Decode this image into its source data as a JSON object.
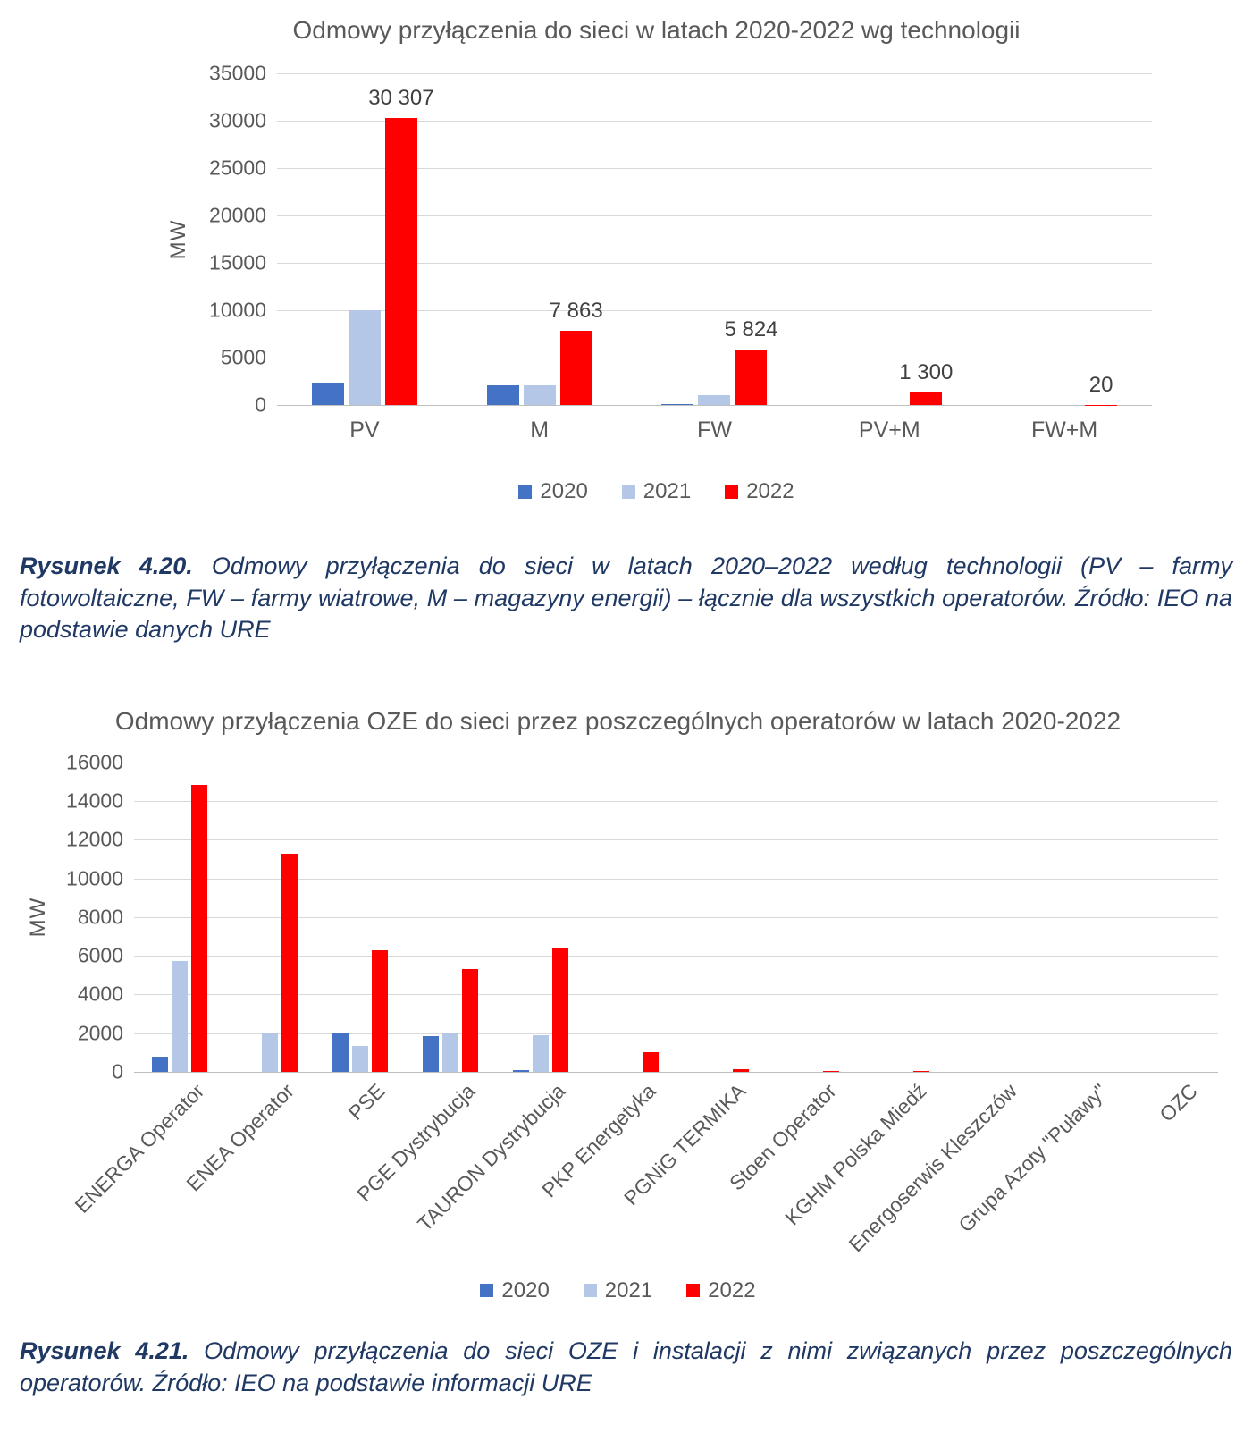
{
  "colors": {
    "series": [
      "#4472C4",
      "#B4C7E7",
      "#FF0000"
    ],
    "gridline": "#D9D9D9",
    "axis_text": "#595959",
    "data_label_text": "#404040",
    "caption_text": "#1F3864"
  },
  "chart_data": [
    {
      "type": "bar",
      "title": "Odmowy przyłączenia do sieci w latach 2020-2022 wg technologii",
      "ylabel": "MW",
      "ylim": [
        0,
        35000
      ],
      "ytick_step": 5000,
      "grid": true,
      "legend_position": "bottom",
      "categories": [
        "PV",
        "M",
        "FW",
        "PV+M",
        "FW+M"
      ],
      "series": [
        {
          "name": "2020",
          "values": [
            2400,
            2100,
            100,
            0,
            0
          ]
        },
        {
          "name": "2021",
          "values": [
            10000,
            2100,
            1000,
            0,
            0
          ]
        },
        {
          "name": "2022",
          "values": [
            30307,
            7863,
            5824,
            1300,
            20
          ],
          "labels": [
            "30 307",
            "7 863",
            "5 824",
            "1 300",
            "20"
          ]
        }
      ],
      "legend": [
        "2020",
        "2021",
        "2022"
      ]
    },
    {
      "type": "bar",
      "title": "Odmowy przyłączenia OZE do sieci przez poszczególnych operatorów w latach 2020-2022",
      "ylabel": "MW",
      "ylim": [
        0,
        16000
      ],
      "ytick_step": 2000,
      "grid": true,
      "legend_position": "bottom",
      "categories": [
        "ENERGA Operator",
        "ENEA Operator",
        "PSE",
        "PGE Dystrybucja",
        "TAURON Dystrybucja",
        "PKP Energetyka",
        "PGNiG TERMIKA",
        "Stoen Operator",
        "KGHM Polska Miedź",
        "Energoserwis Kleszczów",
        "Grupa Azoty \"Puławy\"",
        "OZC"
      ],
      "series": [
        {
          "name": "2020",
          "values": [
            780,
            0,
            2000,
            1850,
            80,
            0,
            0,
            0,
            0,
            0,
            0,
            0
          ]
        },
        {
          "name": "2021",
          "values": [
            5750,
            2000,
            1350,
            2000,
            1880,
            0,
            0,
            0,
            0,
            0,
            0,
            0
          ]
        },
        {
          "name": "2022",
          "values": [
            14850,
            11270,
            6300,
            5300,
            6390,
            1000,
            120,
            30,
            60,
            0,
            0,
            0
          ]
        }
      ],
      "legend": [
        "2020",
        "2021",
        "2022"
      ]
    }
  ],
  "captions": [
    {
      "label": "Rysunek 4.20.",
      "text": "Odmowy przyłączenia do sieci w latach 2020–2022 według technologii (PV – farmy fotowoltaiczne, FW – farmy wiatrowe, M – magazyny energii) – łącznie dla wszystkich operatorów. Źródło: IEO na podstawie danych URE"
    },
    {
      "label": "Rysunek 4.21.",
      "text": "Odmowy przyłączenia do sieci OZE i instalacji z nimi związanych przez poszczególnych operatorów. Źródło: IEO na podstawie informacji URE"
    }
  ]
}
